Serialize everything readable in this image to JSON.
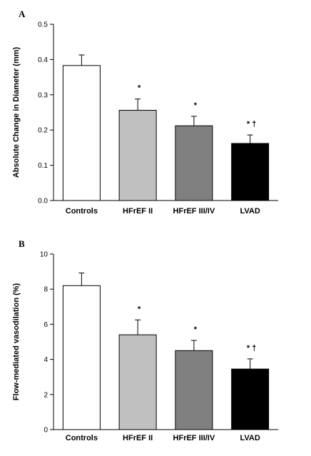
{
  "chart_data": [
    {
      "type": "bar",
      "panel": "A",
      "title": "",
      "xlabel": "",
      "ylabel": "Absolute Change in Diameter (mm)",
      "ylim": [
        0,
        0.5
      ],
      "yticks": [
        "0.0",
        "0.1",
        "0.2",
        "0.3",
        "0.4",
        "0.5"
      ],
      "categories": [
        "Controls",
        "HFrEF II",
        "HFrEF III/IV",
        "LVAD"
      ],
      "values": [
        0.383,
        0.256,
        0.212,
        0.162
      ],
      "errors": [
        0.03,
        0.032,
        0.027,
        0.024
      ],
      "annotations": [
        "",
        "*",
        "*",
        "* †"
      ],
      "colors": [
        "#ffffff",
        "#c0c0c0",
        "#808080",
        "#000000"
      ],
      "grid": false
    },
    {
      "type": "bar",
      "panel": "B",
      "title": "",
      "xlabel": "",
      "ylabel": "Flow-mediated vasodilation (%)",
      "ylim": [
        0,
        10
      ],
      "yticks": [
        "0",
        "2",
        "4",
        "6",
        "8",
        "10"
      ],
      "categories": [
        "Controls",
        "HFrEF II",
        "HFrEF III/IV",
        "LVAD"
      ],
      "values": [
        8.2,
        5.4,
        4.5,
        3.45
      ],
      "errors": [
        0.72,
        0.85,
        0.58,
        0.58
      ],
      "annotations": [
        "",
        "*",
        "*",
        "* †"
      ],
      "colors": [
        "#ffffff",
        "#c0c0c0",
        "#808080",
        "#000000"
      ],
      "grid": false
    }
  ]
}
